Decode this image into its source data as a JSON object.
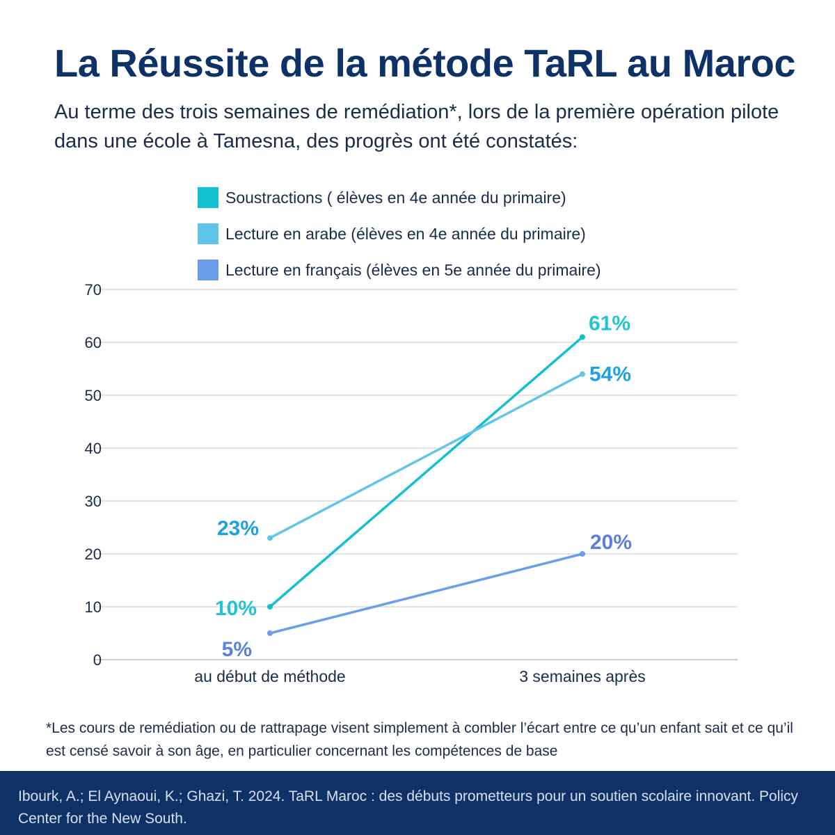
{
  "title": "La Réussite de la métode TaRL au Maroc",
  "subtitle": "Au terme des trois semaines de remédiation*, lors de la première opération pilote dans une école à Tamesna, des progrès ont été constatés:",
  "footnote": "*Les cours de remédiation ou de rattrapage visent simplement à combler l’écart entre ce qu’un enfant sait et ce qu’il est censé savoir à son âge, en particulier concernant les compétences de base",
  "source": "Ibourk, A.; El Aynaoui, K.; Ghazi, T. 2024. TaRL Maroc : des débuts prometteurs pour un soutien scolaire innovant. Policy Center for the New South.",
  "colors": {
    "title": "#0e3166",
    "source_bar": "#0e3166"
  },
  "chart_data": {
    "type": "line",
    "categories": [
      "au début de méthode",
      "3 semaines après"
    ],
    "ylim": [
      0,
      70
    ],
    "yticks": [
      0,
      10,
      20,
      30,
      40,
      50,
      60,
      70
    ],
    "grid": true,
    "legend_position": "top",
    "series": [
      {
        "name": "Soustractions ( élèves en 4e année du primaire)",
        "values": [
          10,
          61
        ],
        "labels": [
          "10%",
          "61%"
        ],
        "color": "#12c0cf",
        "label_color": "#22c4d4"
      },
      {
        "name": "Lecture en arabe (élèves en 4e année du primaire)",
        "values": [
          23,
          54
        ],
        "labels": [
          "23%",
          "54%"
        ],
        "color": "#62c4ea",
        "label_color": "#1ca2e3"
      },
      {
        "name": "Lecture en français (élèves en 5e année du primaire)",
        "values": [
          5,
          20
        ],
        "labels": [
          "5%",
          "20%"
        ],
        "color": "#6b9ee9",
        "label_color": "#5a7fe0"
      }
    ]
  }
}
